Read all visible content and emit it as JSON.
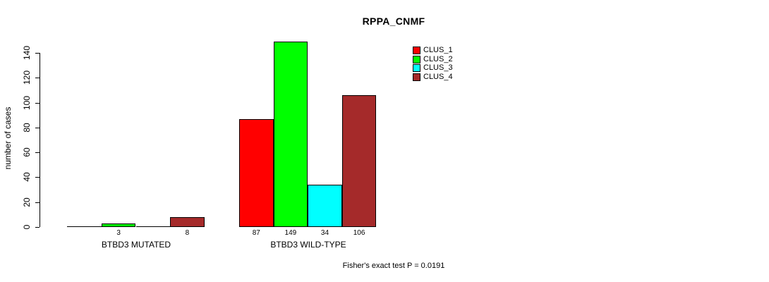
{
  "chart_data": {
    "type": "bar",
    "title": "RPPA_CNMF",
    "ylabel": "number of cases",
    "xlabel": "",
    "ylim": [
      0,
      149
    ],
    "yticks": [
      0,
      20,
      40,
      60,
      80,
      100,
      120,
      140
    ],
    "categories": [
      "BTBD3 MUTATED",
      "BTBD3 WILD-TYPE"
    ],
    "series": [
      {
        "name": "CLUS_1",
        "color": "#FF0000",
        "values": [
          0,
          87
        ]
      },
      {
        "name": "CLUS_2",
        "color": "#00FF00",
        "values": [
          3,
          149
        ]
      },
      {
        "name": "CLUS_3",
        "color": "#00FFFF",
        "values": [
          0,
          34
        ]
      },
      {
        "name": "CLUS_4",
        "color": "#A52A2A",
        "values": [
          8,
          106
        ]
      }
    ],
    "bar_value_labels": [
      "3",
      "8",
      "87",
      "149",
      "34",
      "106"
    ],
    "zero_value_bars_drawn_as_flat_lines": true,
    "legend_position": "top-right",
    "grid": false,
    "background": "#ffffff",
    "caption": "Fisher's exact test P = 0.0191"
  }
}
